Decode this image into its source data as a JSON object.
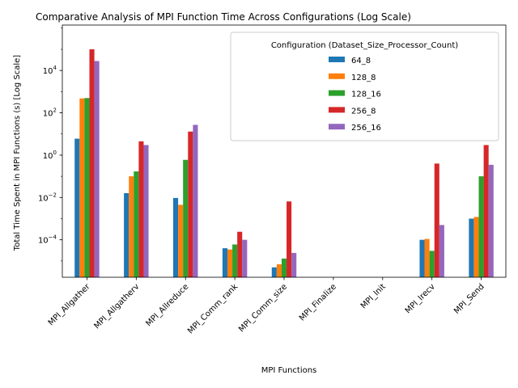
{
  "chart_data": {
    "type": "bar",
    "title": "Comparative Analysis of MPI Function Time Across Configurations (Log Scale)",
    "xlabel": "MPI Functions",
    "ylabel": "Total Time Spent in MPI Functions (s) [Log Scale]",
    "y_scale": "log",
    "ylim": [
      1.7e-06,
      1400000
    ],
    "y_ticks": [
      {
        "value": 0.0001,
        "base": "10",
        "exp": "−4"
      },
      {
        "value": 0.01,
        "base": "10",
        "exp": "−2"
      },
      {
        "value": 1,
        "base": "10",
        "exp": "0"
      },
      {
        "value": 100,
        "base": "10",
        "exp": "2"
      },
      {
        "value": 10000,
        "base": "10",
        "exp": "4"
      }
    ],
    "legend_title": "Configuration (Dataset_Size_Processor_Count)",
    "legend_position": "top-right",
    "categories": [
      "MPI_Allgather",
      "MPI_Allgatherv",
      "MPI_Allreduce",
      "MPI_Comm_rank",
      "MPI_Comm_size",
      "MPI_Finalize",
      "MPI_Init",
      "MPI_Irecv",
      "MPI_Send"
    ],
    "series": [
      {
        "name": "64_8",
        "color": "#1f77b4",
        "values": [
          6.0,
          0.016,
          0.0095,
          4e-05,
          5e-06,
          null,
          null,
          0.0001,
          0.001
        ]
      },
      {
        "name": "128_8",
        "color": "#ff7f0e",
        "values": [
          480,
          0.1,
          0.0045,
          3.5e-05,
          7e-06,
          null,
          null,
          0.00011,
          0.0012
        ]
      },
      {
        "name": "128_16",
        "color": "#2ca02c",
        "values": [
          500,
          0.17,
          0.6,
          6e-05,
          1.3e-05,
          null,
          null,
          3e-05,
          0.1
        ]
      },
      {
        "name": "256_8",
        "color": "#d62728",
        "values": [
          100000,
          4.5,
          13,
          0.00024,
          0.0065,
          null,
          null,
          0.4,
          3.0
        ]
      },
      {
        "name": "256_16",
        "color": "#9467bd",
        "values": [
          28000,
          3.0,
          27,
          0.0001,
          2.4e-05,
          null,
          null,
          0.0005,
          0.35
        ]
      }
    ]
  }
}
